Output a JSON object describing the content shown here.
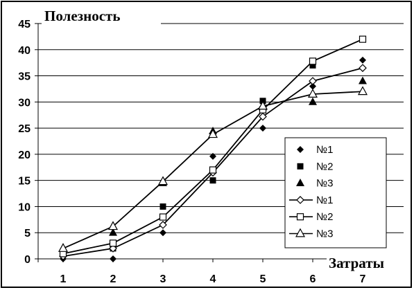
{
  "chart_data": {
    "type": "scatter",
    "title": "",
    "ylabel": "Полезность",
    "xlabel": "Затраты",
    "x": [
      1,
      2,
      3,
      4,
      5,
      6,
      7
    ],
    "xlim": [
      1,
      7
    ],
    "ylim": [
      0,
      45
    ],
    "yticks": [
      0,
      5,
      10,
      15,
      20,
      25,
      30,
      35,
      40,
      45
    ],
    "grid": "horizontal",
    "legend_position": "bottom-right",
    "series": [
      {
        "name": "№1",
        "kind": "points",
        "marker": "diamond-filled",
        "values": [
          0,
          0,
          5,
          19.6,
          25,
          33,
          38
        ]
      },
      {
        "name": "№2",
        "kind": "points",
        "marker": "square-filled",
        "values": [
          1,
          2,
          10,
          15,
          30.2,
          37,
          42
        ]
      },
      {
        "name": "№3",
        "kind": "points",
        "marker": "triangle-filled",
        "values": [
          2,
          5,
          14.5,
          24.4,
          29,
          30,
          34
        ]
      },
      {
        "name": "№1",
        "kind": "line",
        "marker": "diamond-open",
        "values": [
          0.5,
          2,
          6.5,
          16.5,
          27.2,
          34,
          36.5
        ]
      },
      {
        "name": "№2",
        "kind": "line",
        "marker": "square-open",
        "values": [
          1,
          3,
          8,
          17,
          28.5,
          37.8,
          42
        ]
      },
      {
        "name": "№3",
        "kind": "line",
        "marker": "triangle-open",
        "values": [
          2,
          6.2,
          14.8,
          23.8,
          29.2,
          31.5,
          32
        ]
      }
    ]
  }
}
